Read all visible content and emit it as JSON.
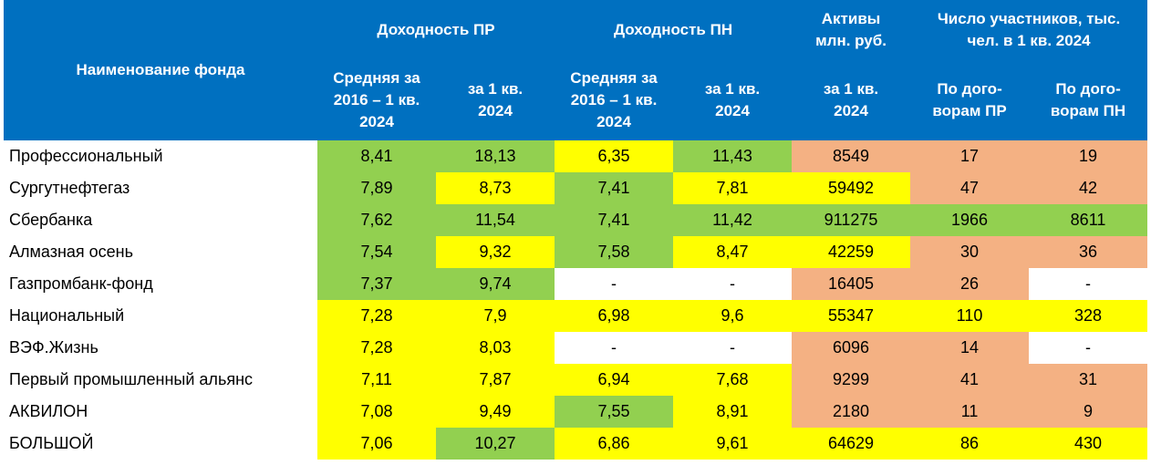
{
  "table": {
    "header": {
      "name": "Наименование фонда",
      "groups": [
        "Доходность ПР",
        "Доходность ПН",
        "Активы\nмлн. руб.",
        "Число участников, тыс.\nчел. в 1 кв. 2024"
      ],
      "columns": [
        "Средняя за\n2016 – 1 кв.\n2024",
        "за 1 кв.\n2024",
        "Средняя за\n2016 – 1 кв.\n2024",
        "за 1 кв.\n2024",
        "за 1 кв.\n2024",
        "По дого-\nворам ПР",
        "По дого-\nворам ПН"
      ]
    },
    "rows": [
      [
        "Профессиональный",
        "8,41",
        "18,13",
        "6,35",
        "11,43",
        "8549",
        "17",
        "19"
      ],
      [
        "Сургутнефтегаз",
        "7,89",
        "8,73",
        "7,41",
        "7,81",
        "59492",
        "47",
        "42"
      ],
      [
        "Сбербанка",
        "7,62",
        "11,54",
        "7,41",
        "11,42",
        "911275",
        "1966",
        "8611"
      ],
      [
        "Алмазная осень",
        "7,54",
        "9,32",
        "7,58",
        "8,47",
        "42259",
        "30",
        "36"
      ],
      [
        "Газпромбанк-фонд",
        "7,37",
        "9,74",
        "-",
        "-",
        "16405",
        "26",
        "-"
      ],
      [
        "Национальный",
        "7,28",
        "7,9",
        "6,98",
        "9,6",
        "55347",
        "110",
        "328"
      ],
      [
        "ВЭФ.Жизнь",
        "7,28",
        "8,03",
        "-",
        "-",
        "6096",
        "14",
        "-"
      ],
      [
        "Первый промышленный альянс",
        "7,11",
        "7,87",
        "6,94",
        "7,68",
        "9299",
        "41",
        "31"
      ],
      [
        "АКВИЛОН",
        "7,08",
        "9,49",
        "7,55",
        "8,91",
        "2180",
        "11",
        "9"
      ],
      [
        "БОЛЬШОЙ",
        "7,06",
        "10,27",
        "6,86",
        "9,61",
        "64629",
        "86",
        "430"
      ]
    ],
    "fills": [
      [
        "#92d050",
        "#92d050",
        "#ffff00",
        "#92d050",
        "#f4b183",
        "#f4b183",
        "#f4b183"
      ],
      [
        "#92d050",
        "#ffff00",
        "#92d050",
        "#ffff00",
        "#ffff00",
        "#f4b183",
        "#f4b183"
      ],
      [
        "#92d050",
        "#92d050",
        "#92d050",
        "#92d050",
        "#92d050",
        "#92d050",
        "#92d050"
      ],
      [
        "#92d050",
        "#ffff00",
        "#92d050",
        "#ffff00",
        "#ffff00",
        "#f4b183",
        "#f4b183"
      ],
      [
        "#92d050",
        "#92d050",
        "#ffffff",
        "#ffffff",
        "#f4b183",
        "#f4b183",
        "#ffffff"
      ],
      [
        "#ffff00",
        "#ffff00",
        "#ffff00",
        "#ffff00",
        "#ffff00",
        "#ffff00",
        "#ffff00"
      ],
      [
        "#ffff00",
        "#ffff00",
        "#ffffff",
        "#ffffff",
        "#f4b183",
        "#f4b183",
        "#ffffff"
      ],
      [
        "#ffff00",
        "#ffff00",
        "#ffff00",
        "#ffff00",
        "#f4b183",
        "#f4b183",
        "#f4b183"
      ],
      [
        "#ffff00",
        "#ffff00",
        "#92d050",
        "#ffff00",
        "#f4b183",
        "#f4b183",
        "#f4b183"
      ],
      [
        "#ffff00",
        "#92d050",
        "#ffff00",
        "#ffff00",
        "#ffff00",
        "#ffff00",
        "#ffff00"
      ]
    ]
  }
}
